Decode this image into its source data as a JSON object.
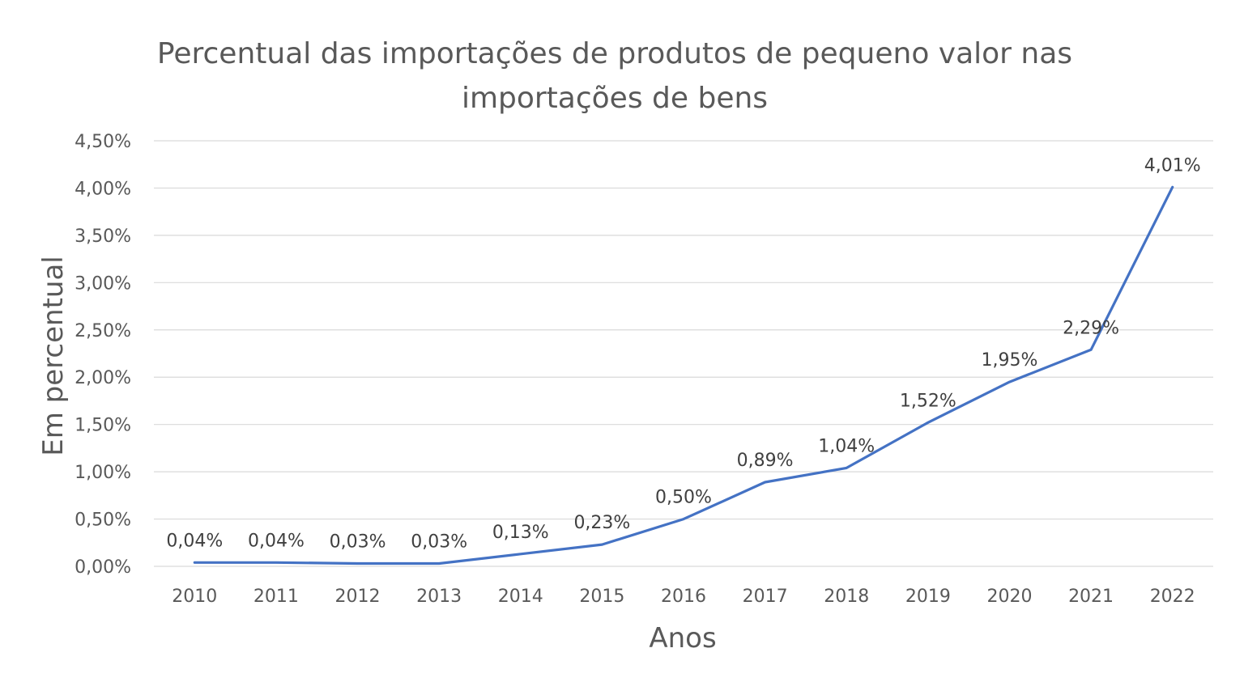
{
  "chart_data": {
    "type": "line",
    "title_lines": [
      "Percentual das importações de  produtos de pequeno valor nas",
      "importações de bens"
    ],
    "xlabel": "Anos",
    "ylabel": "Em percentual",
    "categories": [
      "2010",
      "2011",
      "2012",
      "2013",
      "2014",
      "2015",
      "2016",
      "2017",
      "2018",
      "2019",
      "2020",
      "2021",
      "2022"
    ],
    "series": [
      {
        "color": "#4472c4",
        "values": [
          0.04,
          0.04,
          0.03,
          0.03,
          0.13,
          0.23,
          0.5,
          0.89,
          1.04,
          1.52,
          1.95,
          2.29,
          4.01
        ],
        "labels": [
          "0,04%",
          "0,04%",
          "0,03%",
          "0,03%",
          "0,13%",
          "0,23%",
          "0,50%",
          "0,89%",
          "1,04%",
          "1,52%",
          "1,95%",
          "2,29%",
          "4,01%"
        ]
      }
    ],
    "ylim": [
      0,
      4.5
    ],
    "ytick_values": [
      0,
      0.5,
      1.0,
      1.5,
      2.0,
      2.5,
      3.0,
      3.5,
      4.0,
      4.5
    ],
    "ytick_labels": [
      "0,00%",
      "0,50%",
      "1,00%",
      "1,50%",
      "2,00%",
      "2,50%",
      "3,00%",
      "3,50%",
      "4,00%",
      "4,50%"
    ],
    "grid": true,
    "legend": "none"
  }
}
